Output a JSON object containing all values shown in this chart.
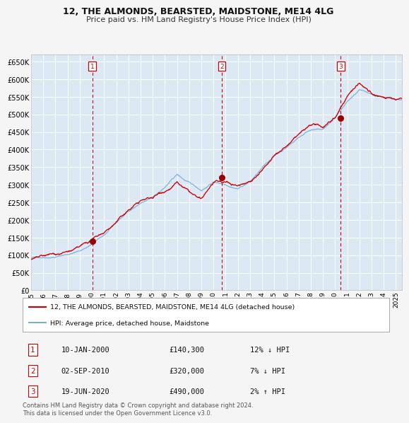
{
  "title": "12, THE ALMONDS, BEARSTED, MAIDSTONE, ME14 4LG",
  "subtitle": "Price paid vs. HM Land Registry's House Price Index (HPI)",
  "bg_color": "#dce9f5",
  "fig_bg_color": "#f5f5f5",
  "grid_color": "#ffffff",
  "hpi_color": "#7ab0d8",
  "price_color": "#cc0000",
  "marker_color": "#990000",
  "vline_color": "#cc0000",
  "ylim": [
    0,
    670000
  ],
  "yticks": [
    0,
    50000,
    100000,
    150000,
    200000,
    250000,
    300000,
    350000,
    400000,
    450000,
    500000,
    550000,
    600000,
    650000
  ],
  "x_start": 1995,
  "x_end": 2025.5,
  "transactions": [
    {
      "label": "1",
      "date_x": 2000.03,
      "price": 140300,
      "year_label": "10-JAN-2000",
      "hpi_diff": "12% ↓ HPI"
    },
    {
      "label": "2",
      "date_x": 2010.67,
      "price": 320000,
      "year_label": "02-SEP-2010",
      "hpi_diff": "7% ↓ HPI"
    },
    {
      "label": "3",
      "date_x": 2020.47,
      "price": 490000,
      "year_label": "19-JUN-2020",
      "hpi_diff": "2% ↑ HPI"
    }
  ],
  "legend_line1": "12, THE ALMONDS, BEARSTED, MAIDSTONE, ME14 4LG (detached house)",
  "legend_line2": "HPI: Average price, detached house, Maidstone",
  "footnote": "Contains HM Land Registry data © Crown copyright and database right 2024.\nThis data is licensed under the Open Government Licence v3.0.",
  "xtick_years": [
    1995,
    1996,
    1997,
    1998,
    1999,
    2000,
    2001,
    2002,
    2003,
    2004,
    2005,
    2006,
    2007,
    2008,
    2009,
    2010,
    2011,
    2012,
    2013,
    2014,
    2015,
    2016,
    2017,
    2018,
    2019,
    2020,
    2021,
    2022,
    2023,
    2024,
    2025
  ]
}
